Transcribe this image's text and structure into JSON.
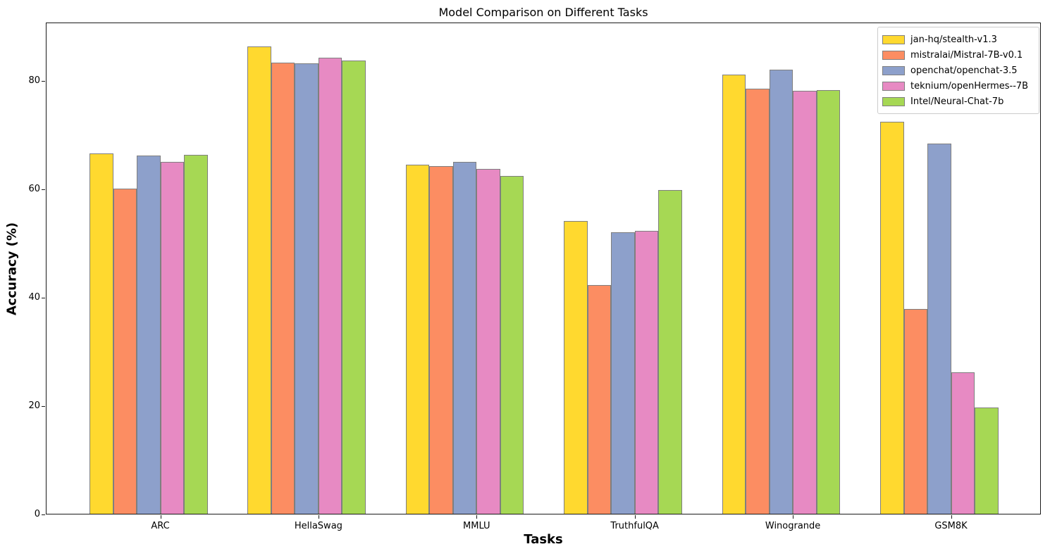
{
  "chart_data": {
    "type": "bar",
    "title": "Model Comparison on Different Tasks",
    "xlabel": "Tasks",
    "ylabel": "Accuracy (%)",
    "categories": [
      "ARC",
      "HellaSwag",
      "MMLU",
      "TruthfulQA",
      "Winogrande",
      "GSM8K"
    ],
    "series": [
      {
        "name": "jan-hq/stealth-v1.3",
        "color": "#FFD92F",
        "values": [
          66.5,
          86.3,
          64.4,
          54.1,
          81.0,
          72.4
        ]
      },
      {
        "name": "mistralai/Mistral-7B-v0.1",
        "color": "#FC8D62",
        "values": [
          60.0,
          83.3,
          64.2,
          42.2,
          78.4,
          37.8
        ]
      },
      {
        "name": "openchat/openchat-3.5",
        "color": "#8DA0CB",
        "values": [
          66.1,
          83.1,
          65.0,
          51.9,
          82.0,
          68.3
        ]
      },
      {
        "name": "teknium/openHermes--7B",
        "color": "#E78AC3",
        "values": [
          64.9,
          84.2,
          63.6,
          52.2,
          78.1,
          26.1
        ]
      },
      {
        "name": "Intel/Neural-Chat-7b",
        "color": "#A6D854",
        "values": [
          66.2,
          83.6,
          62.4,
          59.7,
          78.2,
          19.6
        ]
      }
    ],
    "ylim": [
      0,
      90.8
    ],
    "yticks": [
      0,
      20,
      40,
      60,
      80
    ],
    "grid": false,
    "legend_position": "upper right",
    "bar_edge_color": "#7f7f7f",
    "axis_color": "#000000",
    "background": "#ffffff"
  }
}
